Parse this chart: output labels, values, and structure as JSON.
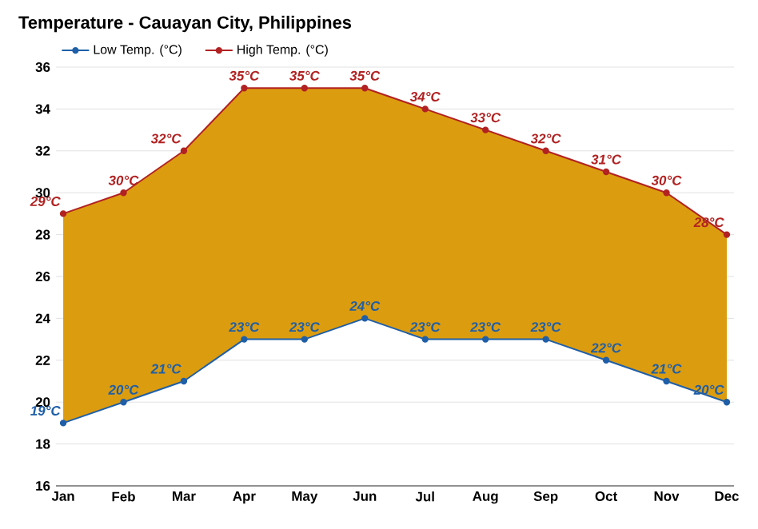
{
  "chart_data": {
    "type": "line",
    "title": "Temperature - Cauayan City, Philippines",
    "categories": [
      "Jan",
      "Feb",
      "Mar",
      "Apr",
      "May",
      "Jun",
      "Jul",
      "Aug",
      "Sep",
      "Oct",
      "Nov",
      "Dec"
    ],
    "series": [
      {
        "name": "Low Temp. (°C)",
        "color": "#1f5fa8",
        "values": [
          19,
          20,
          21,
          23,
          23,
          24,
          23,
          23,
          23,
          22,
          21,
          20
        ],
        "value_labels": [
          "19°C",
          "20°C",
          "21°C",
          "23°C",
          "23°C",
          "24°C",
          "23°C",
          "23°C",
          "23°C",
          "22°C",
          "21°C",
          "20°C"
        ]
      },
      {
        "name": "High Temp. (°C)",
        "color": "#b22222",
        "values": [
          29,
          30,
          32,
          35,
          35,
          35,
          34,
          33,
          32,
          31,
          30,
          28
        ],
        "lower": [
          19,
          20,
          21,
          23,
          23,
          24,
          23,
          23,
          23,
          22,
          21,
          20
        ],
        "upper": [
          29,
          30,
          32,
          35,
          35,
          35,
          34,
          33,
          32,
          31,
          30,
          28
        ],
        "value_labels": [
          "29°C",
          "30°C",
          "32°C",
          "35°C",
          "35°C",
          "35°C",
          "34°C",
          "33°C",
          "32°C",
          "31°C",
          "30°C",
          "28°C"
        ]
      }
    ],
    "ylim": [
      16,
      36
    ],
    "yticks": [
      16,
      18,
      20,
      22,
      24,
      26,
      28,
      30,
      32,
      34,
      36
    ],
    "grid": "y",
    "legend": "top left",
    "marker": "circle",
    "line_style": "solid"
  }
}
